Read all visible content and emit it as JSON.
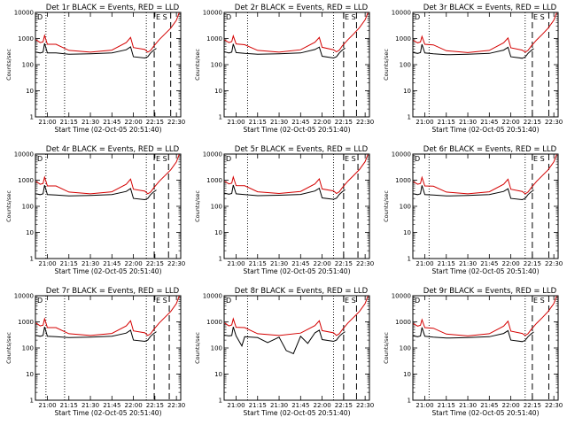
{
  "colors": {
    "events": "#000000",
    "lld": "#d40000",
    "background": "#ffffff",
    "axes": "#000000"
  },
  "xlabel": "Start Time (02-Oct-05 20:51:40)",
  "ylabel": "Counts/sec",
  "x_tick_labels": [
    "21:00",
    "21:15",
    "21:30",
    "21:45",
    "22:00",
    "22:15",
    "22:30"
  ],
  "y_tick_labels": [
    "1",
    "10",
    "100",
    "1000",
    "10000"
  ],
  "corner_markers": {
    "left": "D",
    "right": "E S"
  },
  "chart_data": [
    {
      "type": "line",
      "title": "Det 1r BLACK = Events, RED = LLD",
      "ylog": true,
      "xlim": [
        "20:51:40",
        "22:33:00"
      ],
      "ylim": [
        1,
        10000
      ],
      "vlines_dotted": [
        "20:59:00",
        "21:12:00",
        "22:09:00"
      ],
      "vlines_dashed": [
        "22:14:30",
        "22:26:00"
      ],
      "series": [
        {
          "name": "Events",
          "x": [
            "20:52",
            "20:55",
            "20:57",
            "20:58",
            "21:00",
            "21:06",
            "21:15",
            "21:30",
            "21:45",
            "21:55",
            "21:58",
            "22:00",
            "22:08",
            "22:10",
            "22:12",
            "22:14",
            "22:16"
          ],
          "values": [
            300,
            280,
            300,
            650,
            280,
            280,
            250,
            260,
            280,
            370,
            480,
            200,
            180,
            200,
            280,
            350,
            420
          ]
        },
        {
          "name": "LLD",
          "x": [
            "20:52",
            "20:55",
            "20:57",
            "20:58",
            "21:00",
            "21:06",
            "21:15",
            "21:30",
            "21:45",
            "21:55",
            "21:58",
            "22:00",
            "22:08",
            "22:10",
            "22:12",
            "22:14",
            "22:18",
            "22:22",
            "22:26",
            "22:30",
            "22:32"
          ],
          "values": [
            900,
            700,
            750,
            1300,
            600,
            600,
            350,
            300,
            360,
            700,
            1100,
            450,
            380,
            300,
            350,
            500,
            900,
            1500,
            2500,
            5000,
            10000
          ]
        }
      ]
    },
    {
      "type": "line",
      "title": "Det 2r BLACK = Events, RED = LLD",
      "ylog": true,
      "xlim": [
        "20:51:40",
        "22:33:00"
      ],
      "ylim": [
        1,
        10000
      ],
      "vlines_dotted": [
        "21:08:00",
        "22:08:00"
      ],
      "vlines_dashed": [
        "22:15:00",
        "22:24:00"
      ],
      "series": [
        {
          "name": "Events",
          "x": [
            "20:52",
            "20:55",
            "20:57",
            "20:58",
            "21:00",
            "21:06",
            "21:15",
            "21:30",
            "21:45",
            "21:55",
            "21:58",
            "22:00",
            "22:08",
            "22:10",
            "22:12",
            "22:14",
            "22:16"
          ],
          "values": [
            310,
            280,
            300,
            620,
            290,
            270,
            250,
            260,
            280,
            380,
            470,
            210,
            180,
            200,
            280,
            360,
            430
          ]
        },
        {
          "name": "LLD",
          "x": [
            "20:52",
            "20:55",
            "20:57",
            "20:58",
            "21:00",
            "21:06",
            "21:15",
            "21:30",
            "21:45",
            "21:55",
            "21:58",
            "22:00",
            "22:08",
            "22:10",
            "22:12",
            "22:14",
            "22:18",
            "22:22",
            "22:26",
            "22:30",
            "22:32"
          ],
          "values": [
            880,
            700,
            760,
            1250,
            620,
            580,
            350,
            300,
            370,
            720,
            1100,
            460,
            370,
            310,
            360,
            520,
            900,
            1500,
            2600,
            5200,
            10000
          ]
        }
      ]
    },
    {
      "type": "line",
      "title": "Det 3r BLACK = Events, RED = LLD",
      "ylog": true,
      "xlim": [
        "20:51:40",
        "22:33:00"
      ],
      "ylim": [
        1,
        10000
      ],
      "vlines_dotted": [
        "21:03:00",
        "22:10:00"
      ],
      "vlines_dashed": [
        "22:15:00",
        "22:26:30"
      ],
      "series": [
        {
          "name": "Events",
          "x": [
            "20:52",
            "20:55",
            "20:57",
            "20:58",
            "21:00",
            "21:06",
            "21:15",
            "21:30",
            "21:45",
            "21:55",
            "21:58",
            "22:00",
            "22:08",
            "22:10",
            "22:12",
            "22:14",
            "22:16"
          ],
          "values": [
            290,
            270,
            290,
            600,
            280,
            260,
            240,
            250,
            270,
            360,
            460,
            200,
            175,
            195,
            270,
            340,
            410
          ]
        },
        {
          "name": "LLD",
          "x": [
            "20:52",
            "20:55",
            "20:57",
            "20:58",
            "21:00",
            "21:06",
            "21:15",
            "21:30",
            "21:45",
            "21:55",
            "21:58",
            "22:00",
            "22:08",
            "22:10",
            "22:12",
            "22:14",
            "22:18",
            "22:22",
            "22:26",
            "22:30",
            "22:32"
          ],
          "values": [
            850,
            680,
            740,
            1200,
            600,
            570,
            340,
            290,
            350,
            690,
            1050,
            440,
            360,
            300,
            350,
            500,
            880,
            1450,
            2500,
            5000,
            10000
          ]
        }
      ]
    },
    {
      "type": "line",
      "title": "Det 4r BLACK = Events, RED = LLD",
      "ylog": true,
      "xlim": [
        "20:51:40",
        "22:33:00"
      ],
      "ylim": [
        1,
        10000
      ],
      "vlines_dotted": [
        "20:59:00",
        "22:09:00"
      ],
      "vlines_dashed": [
        "22:14:30",
        "22:24:30"
      ],
      "series": [
        {
          "name": "Events",
          "x": [
            "20:52",
            "20:55",
            "20:57",
            "20:58",
            "21:00",
            "21:06",
            "21:15",
            "21:30",
            "21:45",
            "21:55",
            "21:58",
            "22:00",
            "22:08",
            "22:10",
            "22:12",
            "22:14",
            "22:16"
          ],
          "values": [
            300,
            280,
            300,
            640,
            280,
            270,
            250,
            260,
            280,
            370,
            480,
            200,
            180,
            200,
            280,
            350,
            420
          ]
        },
        {
          "name": "LLD",
          "x": [
            "20:52",
            "20:55",
            "20:57",
            "20:58",
            "21:00",
            "21:06",
            "21:15",
            "21:30",
            "21:45",
            "21:55",
            "21:58",
            "22:00",
            "22:08",
            "22:10",
            "22:12",
            "22:14",
            "22:18",
            "22:22",
            "22:26",
            "22:30",
            "22:32"
          ],
          "values": [
            900,
            700,
            750,
            1300,
            600,
            600,
            350,
            300,
            360,
            700,
            1100,
            450,
            380,
            300,
            350,
            500,
            900,
            1500,
            2500,
            5000,
            10000
          ]
        }
      ]
    },
    {
      "type": "line",
      "title": "Det 5r BLACK = Events, RED = LLD",
      "ylog": true,
      "xlim": [
        "20:51:40",
        "22:33:00"
      ],
      "ylim": [
        1,
        10000
      ],
      "vlines_dotted": [
        "21:08:00",
        "22:08:00"
      ],
      "vlines_dashed": [
        "22:15:00",
        "22:25:00"
      ],
      "series": [
        {
          "name": "Events",
          "x": [
            "20:52",
            "20:55",
            "20:57",
            "20:58",
            "21:00",
            "21:06",
            "21:15",
            "21:30",
            "21:45",
            "21:55",
            "21:58",
            "22:00",
            "22:08",
            "22:10",
            "22:12",
            "22:14",
            "22:16"
          ],
          "values": [
            320,
            290,
            310,
            650,
            300,
            280,
            255,
            265,
            285,
            385,
            490,
            210,
            185,
            205,
            285,
            360,
            430
          ]
        },
        {
          "name": "LLD",
          "x": [
            "20:52",
            "20:55",
            "20:57",
            "20:58",
            "21:00",
            "21:06",
            "21:15",
            "21:30",
            "21:45",
            "21:55",
            "21:58",
            "22:00",
            "22:08",
            "22:10",
            "22:12",
            "22:14",
            "22:18",
            "22:22",
            "22:26",
            "22:30",
            "22:32"
          ],
          "values": [
            920,
            720,
            770,
            1320,
            620,
            610,
            360,
            310,
            370,
            720,
            1120,
            460,
            390,
            310,
            360,
            510,
            920,
            1520,
            2550,
            5100,
            10000
          ]
        }
      ]
    },
    {
      "type": "line",
      "title": "Det 6r BLACK = Events, RED = LLD",
      "ylog": true,
      "xlim": [
        "20:51:40",
        "22:33:00"
      ],
      "ylim": [
        1,
        10000
      ],
      "vlines_dotted": [
        "21:03:00",
        "22:10:00"
      ],
      "vlines_dashed": [
        "22:15:00",
        "22:26:30"
      ],
      "series": [
        {
          "name": "Events",
          "x": [
            "20:52",
            "20:55",
            "20:57",
            "20:58",
            "21:00",
            "21:06",
            "21:15",
            "21:30",
            "21:45",
            "21:55",
            "21:58",
            "22:00",
            "22:08",
            "22:10",
            "22:12",
            "22:14",
            "22:16"
          ],
          "values": [
            300,
            280,
            300,
            630,
            280,
            270,
            250,
            260,
            280,
            370,
            470,
            200,
            180,
            200,
            280,
            350,
            420
          ]
        },
        {
          "name": "LLD",
          "x": [
            "20:52",
            "20:55",
            "20:57",
            "20:58",
            "21:00",
            "21:06",
            "21:15",
            "21:30",
            "21:45",
            "21:55",
            "21:58",
            "22:00",
            "22:08",
            "22:10",
            "22:12",
            "22:14",
            "22:18",
            "22:22",
            "22:26",
            "22:30",
            "22:32"
          ],
          "values": [
            890,
            700,
            750,
            1280,
            600,
            590,
            350,
            300,
            360,
            700,
            1090,
            450,
            370,
            300,
            350,
            500,
            900,
            1500,
            2500,
            5000,
            10000
          ]
        }
      ]
    },
    {
      "type": "line",
      "title": "Det 7r BLACK = Events, RED = LLD",
      "ylog": true,
      "xlim": [
        "20:51:40",
        "22:33:00"
      ],
      "ylim": [
        1,
        10000
      ],
      "vlines_dotted": [
        "20:59:00",
        "21:12:00",
        "22:09:00"
      ],
      "vlines_dashed": [
        "22:14:30",
        "22:25:00"
      ],
      "series": [
        {
          "name": "Events",
          "x": [
            "20:52",
            "20:55",
            "20:57",
            "20:58",
            "21:00",
            "21:06",
            "21:15",
            "21:30",
            "21:45",
            "21:55",
            "21:58",
            "22:00",
            "22:08",
            "22:10",
            "22:12",
            "22:14",
            "22:16"
          ],
          "values": [
            300,
            280,
            300,
            640,
            280,
            270,
            250,
            260,
            280,
            370,
            480,
            200,
            180,
            200,
            280,
            350,
            420
          ]
        },
        {
          "name": "LLD",
          "x": [
            "20:52",
            "20:55",
            "20:57",
            "20:58",
            "21:00",
            "21:06",
            "21:15",
            "21:30",
            "21:45",
            "21:55",
            "21:58",
            "22:00",
            "22:08",
            "22:10",
            "22:12",
            "22:14",
            "22:18",
            "22:22",
            "22:26",
            "22:30",
            "22:32"
          ],
          "values": [
            900,
            700,
            750,
            1300,
            600,
            600,
            350,
            300,
            360,
            700,
            1100,
            450,
            380,
            300,
            350,
            500,
            900,
            1500,
            2500,
            5000,
            10000
          ]
        }
      ]
    },
    {
      "type": "line",
      "title": "Det 8r BLACK = Events, RED = LLD",
      "ylog": true,
      "xlim": [
        "20:51:40",
        "22:33:00"
      ],
      "ylim": [
        1,
        10000
      ],
      "vlines_dotted": [
        "21:08:00",
        "22:08:00"
      ],
      "vlines_dashed": [
        "22:15:00",
        "22:24:00"
      ],
      "series": [
        {
          "name": "Events",
          "x": [
            "20:52",
            "20:55",
            "20:57",
            "20:58",
            "21:00",
            "21:04",
            "21:06",
            "21:15",
            "21:22",
            "21:30",
            "21:35",
            "21:40",
            "21:45",
            "21:50",
            "21:55",
            "21:58",
            "22:00",
            "22:08",
            "22:10",
            "22:12",
            "22:14",
            "22:16"
          ],
          "values": [
            310,
            290,
            300,
            640,
            290,
            120,
            270,
            250,
            160,
            260,
            80,
            60,
            280,
            150,
            380,
            480,
            210,
            180,
            200,
            280,
            350,
            420
          ]
        },
        {
          "name": "LLD",
          "x": [
            "20:52",
            "20:55",
            "20:57",
            "20:58",
            "21:00",
            "21:06",
            "21:15",
            "21:30",
            "21:45",
            "21:55",
            "21:58",
            "22:00",
            "22:08",
            "22:10",
            "22:12",
            "22:14",
            "22:18",
            "22:22",
            "22:26",
            "22:30",
            "22:32"
          ],
          "values": [
            900,
            700,
            760,
            1300,
            620,
            600,
            350,
            300,
            370,
            720,
            1100,
            460,
            380,
            300,
            350,
            500,
            900,
            1500,
            2500,
            5000,
            10000
          ]
        }
      ]
    },
    {
      "type": "line",
      "title": "Det 9r BLACK = Events, RED = LLD",
      "ylog": true,
      "xlim": [
        "20:51:40",
        "22:33:00"
      ],
      "ylim": [
        1,
        10000
      ],
      "vlines_dotted": [
        "21:03:00",
        "22:10:00"
      ],
      "vlines_dashed": [
        "22:15:00",
        "22:26:30"
      ],
      "series": [
        {
          "name": "Events",
          "x": [
            "20:52",
            "20:55",
            "20:57",
            "20:58",
            "21:00",
            "21:06",
            "21:15",
            "21:30",
            "21:45",
            "21:55",
            "21:58",
            "22:00",
            "22:08",
            "22:10",
            "22:12",
            "22:14",
            "22:16"
          ],
          "values": [
            290,
            270,
            290,
            610,
            280,
            260,
            240,
            250,
            270,
            360,
            460,
            200,
            175,
            195,
            270,
            340,
            410
          ]
        },
        {
          "name": "LLD",
          "x": [
            "20:52",
            "20:55",
            "20:57",
            "20:58",
            "21:00",
            "21:06",
            "21:15",
            "21:30",
            "21:45",
            "21:55",
            "21:58",
            "22:00",
            "22:08",
            "22:10",
            "22:12",
            "22:14",
            "22:18",
            "22:22",
            "22:26",
            "22:30",
            "22:32"
          ],
          "values": [
            860,
            690,
            740,
            1220,
            600,
            570,
            340,
            290,
            350,
            690,
            1060,
            440,
            360,
            300,
            350,
            500,
            880,
            1460,
            2500,
            5000,
            10000
          ]
        }
      ]
    }
  ]
}
